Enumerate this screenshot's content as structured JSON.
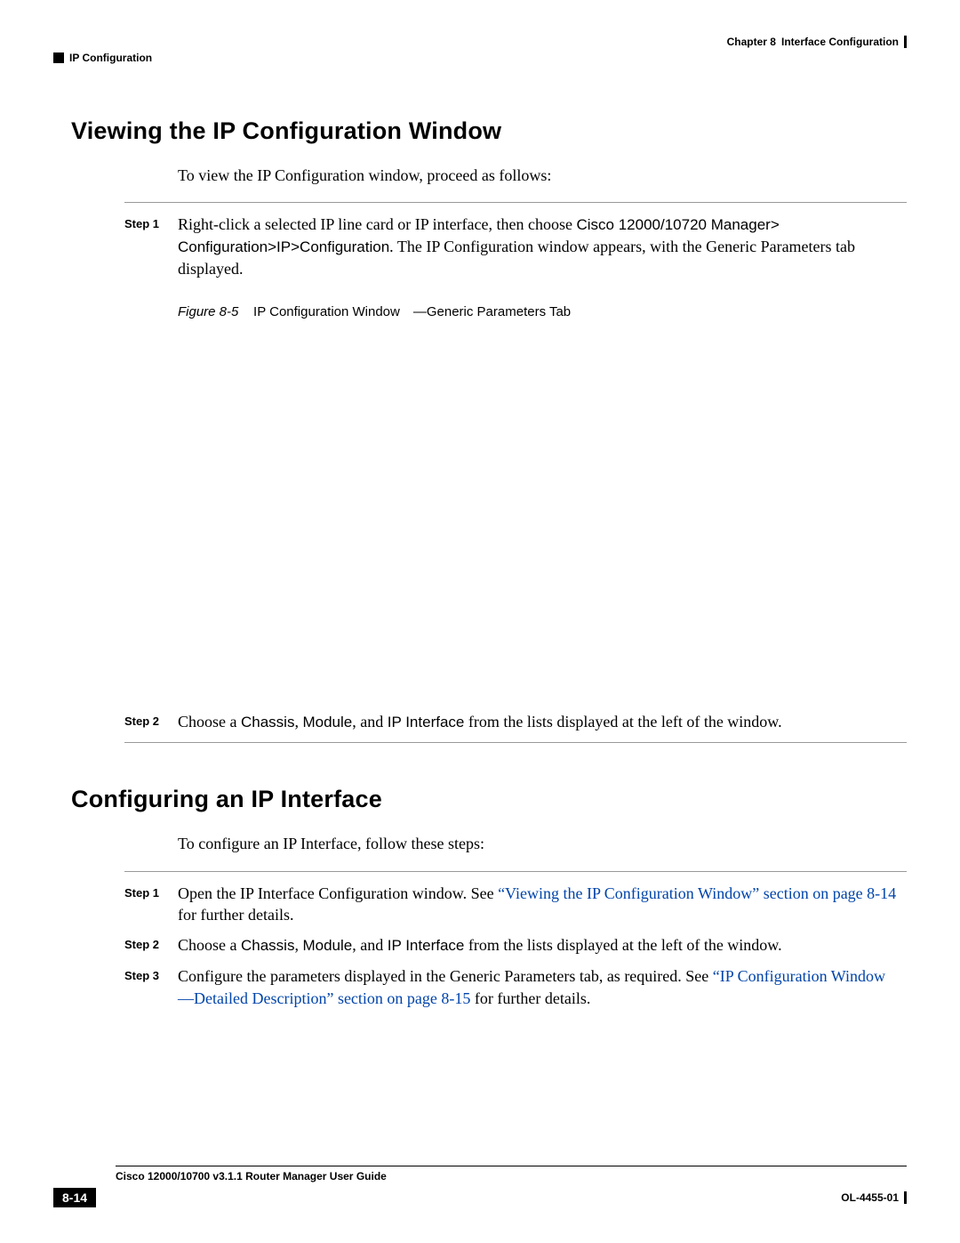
{
  "header": {
    "chapter_label": "Chapter 8",
    "chapter_title": "Interface Configuration",
    "section_crumb": "IP Configuration"
  },
  "section1": {
    "heading": "Viewing the IP Configuration Window",
    "intro": "To view the IP Configuration window, proceed as follows:",
    "step1_label": "Step 1",
    "step1_pre": "Right-click a selected IP line card or IP interface, then choose ",
    "step1_bold1": "Cisco 12000/10720 Manager> Configuration>IP>Configuration",
    "step1_post": ". The IP Configuration window appears, with the Generic Parameters tab displayed.",
    "fig_label": "Figure 8-5",
    "fig_caption": "IP Configuration Window —Generic Parameters Tab",
    "step2_label": "Step 2",
    "step2_pre": "Choose a ",
    "step2_b1": "Chassis",
    "step2_mid1": ", ",
    "step2_b2": "Module",
    "step2_mid2": ", and ",
    "step2_b3": "IP Interface",
    "step2_post": " from the lists displayed at the left of the window."
  },
  "section2": {
    "heading": "Configuring an IP Interface",
    "intro": "To configure an IP Interface, follow these steps:",
    "step1_label": "Step 1",
    "step1_pre": "Open the IP Interface Configuration window. See ",
    "step1_link": "“Viewing the IP Configuration Window” section on page 8-14",
    "step1_post": " for further details.",
    "step2_label": "Step 2",
    "step2_pre": "Choose a ",
    "step2_b1": "Chassis",
    "step2_mid1": ", ",
    "step2_b2": "Module",
    "step2_mid2": ", and ",
    "step2_b3": "IP Interface",
    "step2_post": " from the lists displayed at the left of the window.",
    "step3_label": "Step 3",
    "step3_pre": "Configure the parameters displayed in the Generic Parameters tab, as required. See ",
    "step3_link": "“IP Configuration Window—Detailed Description” section on page 8-15",
    "step3_post": " for further details."
  },
  "footer": {
    "guide": "Cisco 12000/10700 v3.1.1 Router Manager User Guide",
    "page": "8-14",
    "docnum": "OL-4455-01"
  }
}
